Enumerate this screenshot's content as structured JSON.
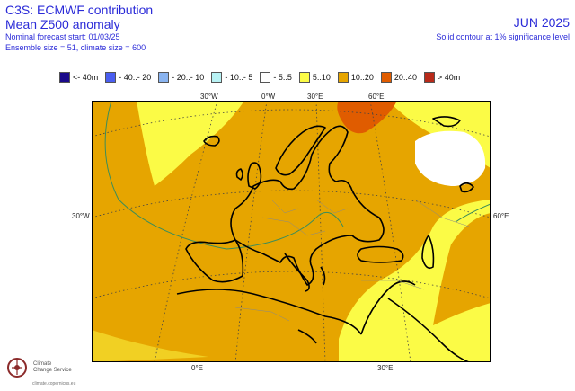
{
  "header": {
    "line1": "C3S: ECMWF contribution",
    "line2": "Mean Z500 anomaly",
    "line3": "Nominal forecast start: 01/03/25",
    "line4": "Ensemble size = 51, climate size = 600",
    "month": "JUN 2025",
    "note": "Solid contour at 1% significance level"
  },
  "legend": [
    {
      "label": "<- 40m",
      "color": "#1a0a8a"
    },
    {
      "label": "- 40..- 20",
      "color": "#4a5ef0"
    },
    {
      "label": "- 20..- 10",
      "color": "#8ab4f0"
    },
    {
      "label": "- 10..- 5",
      "color": "#b8f2f4"
    },
    {
      "label": "- 5..5",
      "color": "#ffffff"
    },
    {
      "label": "5..10",
      "color": "#fbfb46"
    },
    {
      "label": "10..20",
      "color": "#e6a500"
    },
    {
      "label": "20..40",
      "color": "#e05c00"
    },
    {
      "label": "> 40m",
      "color": "#b82a1a"
    }
  ],
  "map": {
    "lon_labels_top": [
      "30°W",
      "0°W",
      "30°E",
      "60°E"
    ],
    "lat_label_left": "30°W",
    "lat_label_right": "60°E",
    "lon_labels_bottom": [
      "0°E",
      "30°E"
    ]
  },
  "logo": {
    "line1": "Climate",
    "line2": "Change Service",
    "url": "climate.copernicus.eu"
  }
}
